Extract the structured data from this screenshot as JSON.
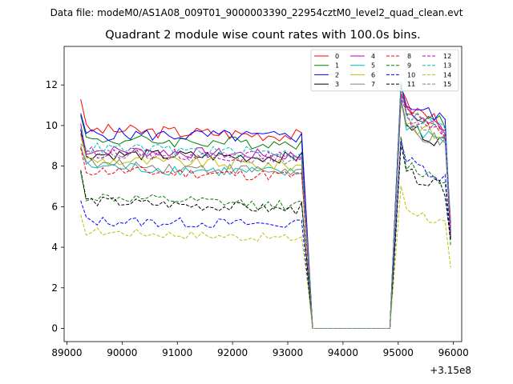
{
  "chart_data": {
    "type": "line",
    "suptitle": "Data file: modeM0/AS1A08_009T01_9000003390_22954cztM0_level2_quad_clean.evt",
    "title": "Quadrant 2 module wise count rates with 100.0s bins.",
    "xlabel": "",
    "ylabel": "",
    "x_offset_label": "+3.15e8",
    "xlim": [
      88950,
      96150
    ],
    "ylim": [
      -0.65,
      13.9
    ],
    "xticks": [
      89000,
      90000,
      91000,
      92000,
      93000,
      94000,
      95000,
      96000
    ],
    "xtick_labels": [
      "89000",
      "90000",
      "91000",
      "92000",
      "93000",
      "94000",
      "95000",
      "96000"
    ],
    "yticks": [
      0,
      2,
      4,
      6,
      8,
      10,
      12
    ],
    "ytick_labels": [
      "0",
      "2",
      "4",
      "6",
      "8",
      "10",
      "12"
    ],
    "x_start": 89250,
    "x_step": 100,
    "segments": {
      "orbit1_points": 42,
      "gap_points": 15,
      "orbit2_points": 11
    },
    "legend": {
      "placement": "upper right",
      "columns": 4,
      "entries": [
        "0",
        "1",
        "2",
        "3",
        "4",
        "5",
        "6",
        "7",
        "8",
        "9",
        "10",
        "11",
        "12",
        "13",
        "14",
        "15"
      ]
    },
    "series": [
      {
        "name": "0",
        "color": "#ff0000",
        "dash": "solid",
        "mean1": 9.8,
        "drop": 0.3,
        "noise": 0.32,
        "mean2": 11.2,
        "first": 11.3,
        "last2": 4.8
      },
      {
        "name": "1",
        "color": "#008000",
        "dash": "solid",
        "mean1": 9.3,
        "drop": 0.2,
        "noise": 0.3,
        "mean2": 11.1,
        "first": 10.5,
        "last2": 5.0
      },
      {
        "name": "2",
        "color": "#0000ff",
        "dash": "solid",
        "mean1": 9.6,
        "drop": 0.2,
        "noise": 0.32,
        "mean2": 11.3,
        "first": 10.6,
        "last2": 4.7
      },
      {
        "name": "3",
        "color": "#000000",
        "dash": "solid",
        "mean1": 8.6,
        "drop": 0.2,
        "noise": 0.28,
        "mean2": 10.2,
        "first": 9.8,
        "last2": 4.5
      },
      {
        "name": "4",
        "color": "#bf00bf",
        "dash": "solid",
        "mean1": 8.8,
        "drop": 0.3,
        "noise": 0.28,
        "mean2": 10.9,
        "first": 10.1,
        "last2": 5.2
      },
      {
        "name": "5",
        "color": "#00bfbf",
        "dash": "solid",
        "mean1": 8.0,
        "drop": 0.4,
        "noise": 0.3,
        "mean2": 10.3,
        "first": 8.9,
        "last2": 4.6
      },
      {
        "name": "6",
        "color": "#bfbf00",
        "dash": "solid",
        "mean1": 8.3,
        "drop": 0.3,
        "noise": 0.3,
        "mean2": 10.4,
        "first": 9.5,
        "last2": 5.0
      },
      {
        "name": "7",
        "color": "#808080",
        "dash": "solid",
        "mean1": 8.1,
        "drop": 0.4,
        "noise": 0.3,
        "mean2": 10.1,
        "first": 9.0,
        "last2": 4.9
      },
      {
        "name": "8",
        "color": "#ff0000",
        "dash": "dashed",
        "mean1": 7.8,
        "drop": 0.3,
        "noise": 0.28,
        "mean2": 10.8,
        "first": 8.9,
        "last2": 4.5
      },
      {
        "name": "9",
        "color": "#008000",
        "dash": "dashed",
        "mean1": 6.5,
        "drop": 0.5,
        "noise": 0.25,
        "mean2": 8.3,
        "first": 7.7,
        "last2": 4.1
      },
      {
        "name": "10",
        "color": "#0000ff",
        "dash": "dashed",
        "mean1": 5.3,
        "drop": 0.2,
        "noise": 0.25,
        "mean2": 8.5,
        "first": 6.3,
        "last2": 4.4
      },
      {
        "name": "11",
        "color": "#000000",
        "dash": "dashed",
        "mean1": 6.3,
        "drop": 0.5,
        "noise": 0.25,
        "mean2": 7.9,
        "first": 7.8,
        "last2": 4.3
      },
      {
        "name": "12",
        "color": "#bf00bf",
        "dash": "dashed",
        "mean1": 8.7,
        "drop": 0.3,
        "noise": 0.28,
        "mean2": 10.6,
        "first": 9.6,
        "last2": 5.1
      },
      {
        "name": "13",
        "color": "#00bfbf",
        "dash": "dashed",
        "mean1": 8.9,
        "drop": 0.3,
        "noise": 0.28,
        "mean2": 10.9,
        "first": 9.9,
        "last2": 5.3
      },
      {
        "name": "14",
        "color": "#bfbf00",
        "dash": "dashed",
        "mean1": 4.8,
        "drop": 0.4,
        "noise": 0.22,
        "mean2": 6.2,
        "first": 5.6,
        "last2": 3.0
      },
      {
        "name": "15",
        "color": "#808080",
        "dash": "dashed",
        "mean1": 8.6,
        "drop": 0.3,
        "noise": 0.28,
        "mean2": 10.6,
        "first": 9.1,
        "last2": 5.2
      }
    ]
  }
}
